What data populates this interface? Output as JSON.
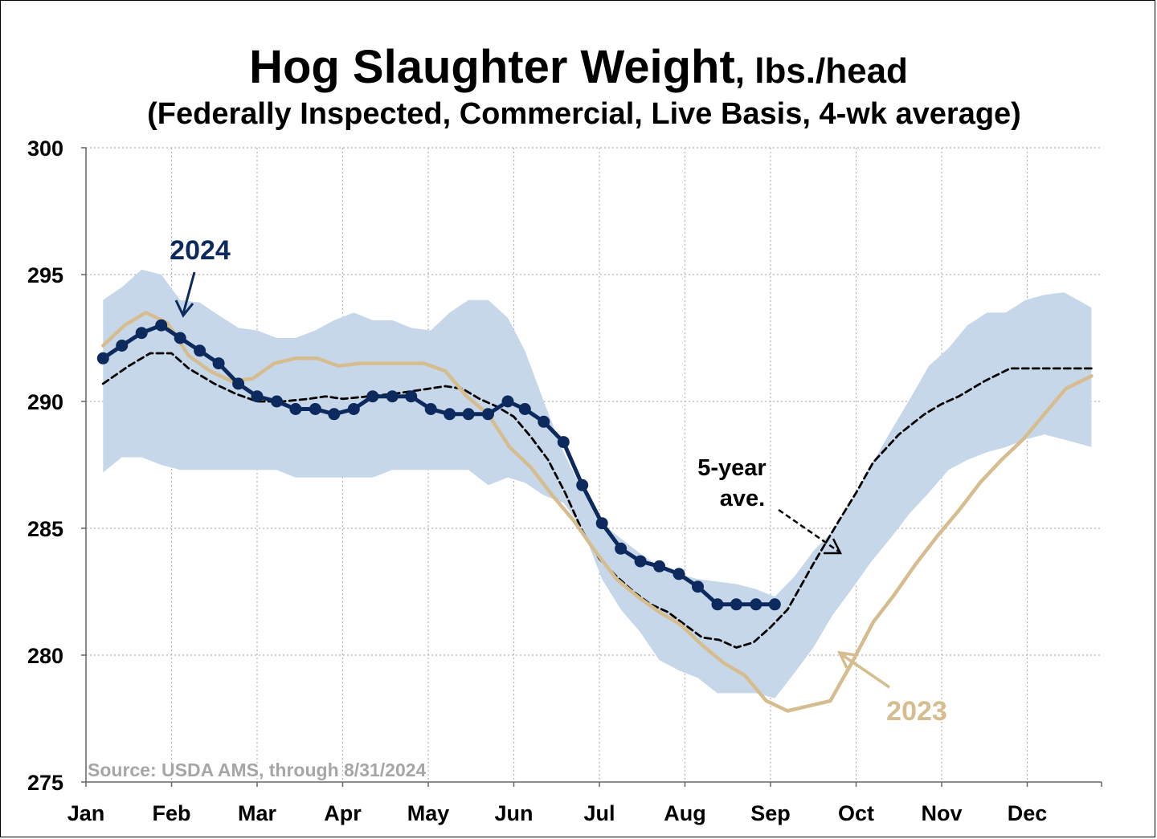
{
  "chart_data": {
    "type": "line",
    "title": "Hog Slaughter Weight",
    "title_unit": ", lbs./head",
    "subtitle": "(Federally Inspected, Commercial, Live Basis, 4-wk average)",
    "xlabel": "",
    "ylabel": "",
    "ylim": [
      275,
      300
    ],
    "yticks": [
      275,
      280,
      285,
      290,
      295,
      300
    ],
    "xlim": [
      0,
      11.75
    ],
    "xticks": [
      {
        "label": "Jan",
        "x": 0
      },
      {
        "label": "Feb",
        "x": 1
      },
      {
        "label": "Mar",
        "x": 2
      },
      {
        "label": "Apr",
        "x": 3
      },
      {
        "label": "May",
        "x": 4
      },
      {
        "label": "Jun",
        "x": 5
      },
      {
        "label": "Jul",
        "x": 6
      },
      {
        "label": "Aug",
        "x": 7
      },
      {
        "label": "Sep",
        "x": 8
      },
      {
        "label": "Oct",
        "x": 9
      },
      {
        "label": "Nov",
        "x": 10
      },
      {
        "label": "Dec",
        "x": 11
      }
    ],
    "grid": true,
    "source": "Source: USDA AMS, through 8/31/2024",
    "colors": {
      "y2024": "#0d2a5e",
      "y2023": "#d6bd8f",
      "avg": "#000000",
      "range": "#c6d7ea",
      "grid": "#b3b3b3"
    },
    "range_band": {
      "x": [
        0.2,
        0.42,
        0.65,
        0.88,
        1.1,
        1.33,
        1.55,
        1.78,
        2.0,
        2.23,
        2.45,
        2.68,
        2.9,
        3.13,
        3.35,
        3.58,
        3.8,
        4.03,
        4.25,
        4.47,
        4.7,
        4.93,
        5.13,
        5.35,
        5.58,
        5.8,
        6.03,
        6.25,
        6.48,
        6.7,
        6.93,
        7.15,
        7.38,
        7.6,
        7.83,
        8.05,
        8.28,
        8.5,
        8.73,
        8.95,
        9.18,
        9.4,
        9.63,
        9.85,
        10.08,
        10.3,
        10.53,
        10.75,
        10.98,
        11.2,
        11.43,
        11.75
      ],
      "upper": [
        294.0,
        294.5,
        295.2,
        295.0,
        294.0,
        293.9,
        293.4,
        292.9,
        292.8,
        292.5,
        292.5,
        292.8,
        293.2,
        293.5,
        293.2,
        293.2,
        292.9,
        292.8,
        293.5,
        294.0,
        294.0,
        293.3,
        292.0,
        290.0,
        288.0,
        286.5,
        285.2,
        284.6,
        284.0,
        283.5,
        283.2,
        283.0,
        282.9,
        282.8,
        282.6,
        282.3,
        283.1,
        284.1,
        284.9,
        286.1,
        287.5,
        288.8,
        290.1,
        291.4,
        292.1,
        293.0,
        293.5,
        293.5,
        294.0,
        294.2,
        294.3,
        293.7
      ],
      "lower": [
        287.2,
        287.8,
        287.8,
        287.5,
        287.3,
        287.3,
        287.3,
        287.3,
        287.3,
        287.3,
        287.0,
        287.0,
        287.0,
        287.0,
        287.0,
        287.3,
        287.3,
        287.3,
        287.3,
        287.3,
        286.7,
        287.0,
        286.8,
        286.3,
        286.0,
        285.0,
        283.0,
        281.8,
        280.9,
        279.8,
        279.4,
        279.1,
        278.5,
        278.5,
        278.5,
        278.3,
        279.3,
        280.3,
        281.6,
        282.6,
        283.7,
        284.6,
        285.6,
        286.4,
        287.3,
        287.7,
        288.0,
        288.2,
        288.5,
        288.7,
        288.5,
        288.2
      ]
    },
    "series": [
      {
        "name": "5-year ave.",
        "style": "dashed",
        "x": [
          0.2,
          0.5,
          0.75,
          1.0,
          1.2,
          1.5,
          1.75,
          2.0,
          2.3,
          2.6,
          2.8,
          3.0,
          3.3,
          3.6,
          3.8,
          4.0,
          4.2,
          4.4,
          4.6,
          4.8,
          5.0,
          5.2,
          5.4,
          5.6,
          5.8,
          6.0,
          6.2,
          6.4,
          6.6,
          6.8,
          7.0,
          7.2,
          7.4,
          7.6,
          7.8,
          8.0,
          8.2,
          8.5,
          8.8,
          9.0,
          9.2,
          9.5,
          9.8,
          10.0,
          10.2,
          10.5,
          10.8,
          11.0,
          11.2,
          11.5,
          11.75
        ],
        "y": [
          290.7,
          291.4,
          291.9,
          291.9,
          291.3,
          290.7,
          290.3,
          290.0,
          290.0,
          290.1,
          290.2,
          290.1,
          290.2,
          290.3,
          290.4,
          290.5,
          290.6,
          290.5,
          290.1,
          289.8,
          289.4,
          288.6,
          287.7,
          286.4,
          284.9,
          283.8,
          283.1,
          282.5,
          282.0,
          281.7,
          281.2,
          280.7,
          280.6,
          280.3,
          280.5,
          281.1,
          281.8,
          283.6,
          285.3,
          286.4,
          287.6,
          288.7,
          289.5,
          289.9,
          290.2,
          290.8,
          291.3,
          291.3,
          291.3,
          291.3,
          291.3
        ]
      },
      {
        "name": "2023",
        "style": "solid",
        "x": [
          0.2,
          0.45,
          0.7,
          0.95,
          1.2,
          1.45,
          1.7,
          1.95,
          2.2,
          2.45,
          2.7,
          2.95,
          3.2,
          3.45,
          3.7,
          3.95,
          4.2,
          4.45,
          4.7,
          4.95,
          5.2,
          5.45,
          5.7,
          5.95,
          6.2,
          6.45,
          6.7,
          6.95,
          7.2,
          7.45,
          7.7,
          7.95,
          8.2,
          8.45,
          8.7,
          8.95,
          9.2,
          9.45,
          9.7,
          9.95,
          10.2,
          10.45,
          10.7,
          10.95,
          11.2,
          11.45,
          11.75
        ],
        "y": [
          292.2,
          293.0,
          293.5,
          293.1,
          291.8,
          291.2,
          290.8,
          290.9,
          291.5,
          291.7,
          291.7,
          291.4,
          291.5,
          291.5,
          291.5,
          291.5,
          291.2,
          290.2,
          289.5,
          288.2,
          287.4,
          286.3,
          285.3,
          284.1,
          283.0,
          282.3,
          281.7,
          281.2,
          280.4,
          279.7,
          279.2,
          278.2,
          277.8,
          278.0,
          278.2,
          279.7,
          281.3,
          282.4,
          283.6,
          284.7,
          285.7,
          286.8,
          287.7,
          288.5,
          289.5,
          290.5,
          291.0
        ]
      },
      {
        "name": "2024",
        "style": "solid-markers",
        "x": [
          0.2,
          0.42,
          0.65,
          0.88,
          1.1,
          1.33,
          1.55,
          1.78,
          2.0,
          2.23,
          2.45,
          2.68,
          2.9,
          3.13,
          3.35,
          3.58,
          3.8,
          4.03,
          4.25,
          4.47,
          4.7,
          4.93,
          5.13,
          5.35,
          5.58,
          5.8,
          6.03,
          6.25,
          6.48,
          6.7,
          6.93,
          7.15,
          7.38,
          7.6,
          7.83,
          8.05
        ],
        "y": [
          291.7,
          292.2,
          292.7,
          293.0,
          292.5,
          292.0,
          291.5,
          290.7,
          290.2,
          290.0,
          289.7,
          289.7,
          289.5,
          289.7,
          290.2,
          290.2,
          290.2,
          289.7,
          289.5,
          289.5,
          289.5,
          290.0,
          289.7,
          289.2,
          288.4,
          286.7,
          285.2,
          284.2,
          283.7,
          283.5,
          283.2,
          282.7,
          282.0,
          282.0,
          282.0,
          282.0
        ]
      }
    ],
    "annotations": [
      {
        "text": "2024",
        "color": "#0d2a5e"
      },
      {
        "text": "5-year",
        "color": "#000000"
      },
      {
        "text": "ave.",
        "color": "#000000"
      },
      {
        "text": "2023",
        "color": "#d6bd8f"
      }
    ]
  }
}
